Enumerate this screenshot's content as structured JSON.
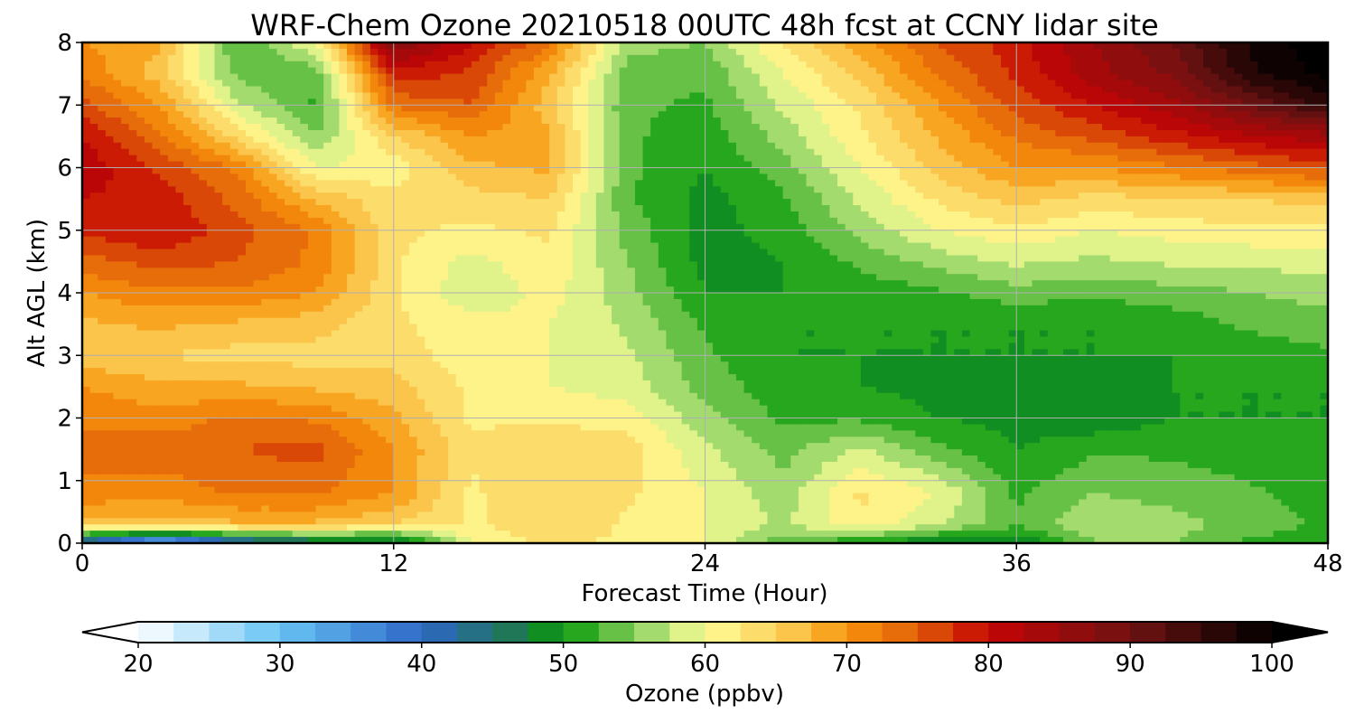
{
  "chart_data": {
    "type": "heatmap",
    "title": "WRF-Chem Ozone  20210518 00UTC 48h fcst at CCNY lidar site",
    "xlabel": "Forecast Time (Hour)",
    "ylabel": "Alt AGL (km)",
    "xlim": [
      0,
      48
    ],
    "ylim": [
      0,
      8
    ],
    "xticks": [
      0,
      12,
      24,
      36,
      48
    ],
    "yticks": [
      0,
      1,
      2,
      3,
      4,
      5,
      6,
      7,
      8
    ],
    "grid": true,
    "x": [
      0,
      3,
      6,
      9,
      12,
      15,
      18,
      21,
      24,
      27,
      30,
      33,
      36,
      39,
      42,
      45,
      48
    ],
    "y": [
      0,
      0.3,
      0.8,
      1.5,
      2,
      2.5,
      3,
      3.5,
      4,
      4.5,
      5,
      5.5,
      6,
      6.5,
      7,
      7.5,
      8
    ],
    "z": [
      [
        40,
        30,
        40,
        44,
        44,
        60,
        63,
        62,
        60,
        53,
        50,
        47,
        47,
        55,
        55,
        52,
        50
      ],
      [
        66,
        66,
        67,
        67,
        65,
        62,
        65,
        62,
        60,
        57,
        62,
        58,
        53,
        57,
        56,
        54,
        52
      ],
      [
        72,
        71,
        73,
        73,
        70,
        62,
        65,
        63,
        60,
        56,
        63,
        60,
        52,
        55,
        54,
        53,
        51
      ],
      [
        73,
        74,
        75,
        76,
        70,
        63,
        65,
        64,
        58,
        54,
        58,
        53,
        50,
        52,
        52,
        51,
        50
      ],
      [
        72,
        71,
        73,
        72,
        68,
        62,
        62,
        61,
        56,
        52,
        52,
        50,
        49,
        48,
        50,
        50,
        50
      ],
      [
        70,
        68,
        68,
        67,
        66,
        62,
        60,
        59,
        54,
        51,
        50,
        49,
        49,
        49,
        50,
        50,
        50
      ],
      [
        66,
        65,
        64,
        64,
        64,
        61,
        60,
        58,
        53,
        50,
        50,
        50,
        50,
        50,
        50,
        51,
        52
      ],
      [
        67,
        68,
        67,
        66,
        63,
        61,
        60,
        57,
        52,
        50,
        50,
        50,
        50,
        50,
        51,
        53,
        54
      ],
      [
        70,
        72,
        72,
        70,
        63,
        58,
        61,
        56,
        50,
        50,
        51,
        52,
        54,
        53,
        54,
        55,
        56
      ],
      [
        74,
        76,
        75,
        72,
        63,
        59,
        62,
        55,
        49,
        50,
        53,
        56,
        58,
        57,
        58,
        58,
        59
      ],
      [
        78,
        80,
        76,
        72,
        63,
        62,
        63,
        54,
        49,
        51,
        56,
        60,
        62,
        60,
        61,
        62,
        62
      ],
      [
        80,
        79,
        74,
        67,
        63,
        64,
        65,
        53,
        49,
        52,
        58,
        63,
        66,
        64,
        65,
        65,
        66
      ],
      [
        82,
        77,
        72,
        60,
        61,
        67,
        68,
        53,
        50,
        54,
        60,
        66,
        70,
        70,
        72,
        74,
        76
      ],
      [
        80,
        73,
        64,
        55,
        65,
        70,
        68,
        53,
        51,
        56,
        62,
        68,
        73,
        76,
        79,
        82,
        84
      ],
      [
        76,
        70,
        58,
        52,
        73,
        75,
        66,
        53,
        52,
        58,
        63,
        70,
        76,
        80,
        84,
        90,
        96
      ],
      [
        72,
        66,
        54,
        53,
        79,
        77,
        68,
        54,
        53,
        60,
        66,
        73,
        78,
        84,
        88,
        97,
        101
      ],
      [
        70,
        68,
        52,
        60,
        88,
        80,
        73,
        56,
        55,
        63,
        69,
        75,
        79,
        85,
        90,
        98,
        102
      ]
    ],
    "colorbar": {
      "label": "Ozone  (ppbv)",
      "min": 20,
      "max": 100,
      "ticks": [
        20,
        30,
        40,
        50,
        60,
        70,
        80,
        90,
        100
      ],
      "extend": "both",
      "anchors": [
        {
          "v": 20,
          "c": "#ffffff"
        },
        {
          "v": 30,
          "c": "#67c3f3"
        },
        {
          "v": 40,
          "c": "#2e67c8"
        },
        {
          "v": 46,
          "c": "#20755c"
        },
        {
          "v": 50,
          "c": "#089a08"
        },
        {
          "v": 56,
          "c": "#9ed96b"
        },
        {
          "v": 60,
          "c": "#fefe98"
        },
        {
          "v": 66,
          "c": "#fbc74e"
        },
        {
          "v": 70,
          "c": "#f7950c"
        },
        {
          "v": 75,
          "c": "#e15e09"
        },
        {
          "v": 80,
          "c": "#c40404"
        },
        {
          "v": 90,
          "c": "#701212"
        },
        {
          "v": 100,
          "c": "#000000"
        }
      ]
    }
  }
}
